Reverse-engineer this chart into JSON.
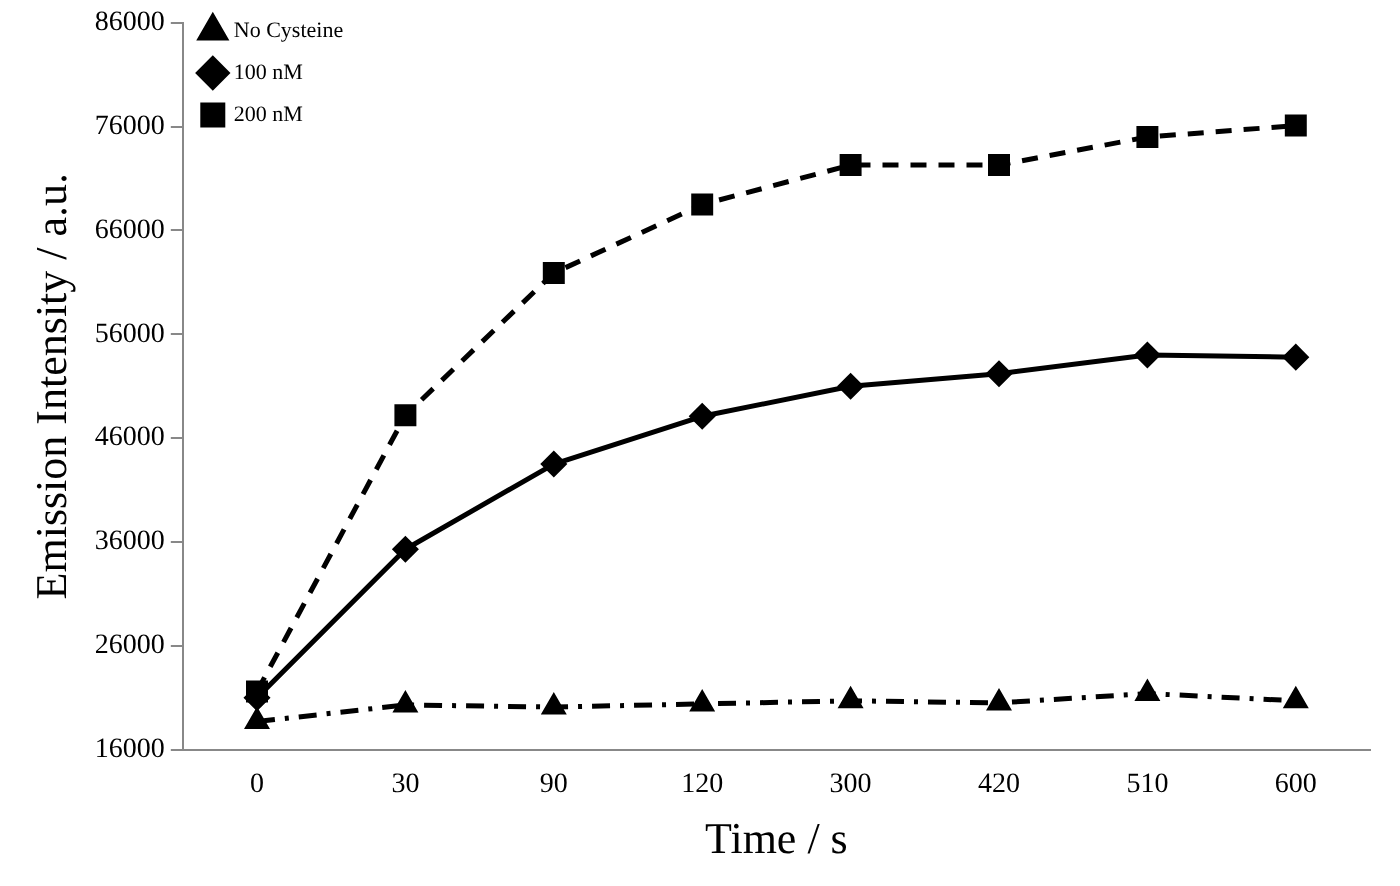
{
  "chart_data": {
    "type": "line",
    "xlabel": "Time / s",
    "ylabel": "Emission Intensity / a.u.",
    "categories": [
      "0",
      "30",
      "90",
      "120",
      "300",
      "420",
      "510",
      "600"
    ],
    "series": [
      {
        "name": "No Cysteine",
        "color": "#000000",
        "marker": "triangle",
        "line_style": "dashed",
        "values": [
          18700,
          20300,
          20100,
          20400,
          20700,
          20500,
          21400,
          20700
        ]
      },
      {
        "name": "100 nM",
        "color": "#000000",
        "marker": "diamond",
        "line_style": "solid",
        "values": [
          21000,
          35300,
          43500,
          48100,
          51000,
          52200,
          54000,
          53800
        ]
      },
      {
        "name": "200 nM",
        "color": "#000000",
        "marker": "square",
        "line_style": "dashed",
        "values": [
          21600,
          48200,
          61900,
          68500,
          72300,
          72300,
          75000,
          76100
        ]
      }
    ],
    "ylim": [
      16000,
      86000
    ],
    "yticks": [
      16000,
      26000,
      36000,
      46000,
      56000,
      66000,
      76000,
      86000
    ],
    "grid": false,
    "legend": "top left"
  }
}
